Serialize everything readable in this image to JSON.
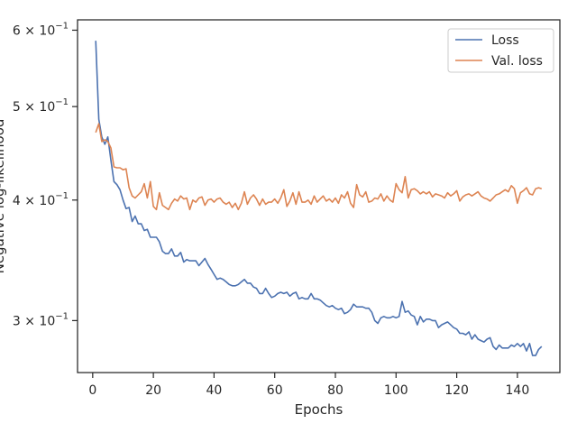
{
  "chart_data": {
    "type": "line",
    "xlabel": "Epochs",
    "ylabel": "Negative log-likelihood",
    "xlim": [
      -5,
      154
    ],
    "ylim": [
      0.265,
      0.615
    ],
    "yscale": "log",
    "grid": false,
    "legend_position": "top-right",
    "x_ticks": [
      0,
      20,
      40,
      60,
      80,
      100,
      120,
      140
    ],
    "x_tick_labels": [
      "0",
      "20",
      "40",
      "60",
      "80",
      "100",
      "120",
      "140"
    ],
    "y_ticks": [
      0.3,
      0.4,
      0.5,
      0.6
    ],
    "y_tick_labels": [
      "3 × 10",
      "4 × 10",
      "5 × 10",
      "6 × 10"
    ],
    "y_tick_exponent": "−1",
    "x": [
      1,
      2,
      3,
      4,
      5,
      6,
      7,
      8,
      9,
      10,
      11,
      12,
      13,
      14,
      15,
      16,
      17,
      18,
      19,
      20,
      21,
      22,
      23,
      24,
      25,
      26,
      27,
      28,
      29,
      30,
      31,
      32,
      33,
      34,
      35,
      36,
      37,
      38,
      39,
      40,
      41,
      42,
      43,
      44,
      45,
      46,
      47,
      48,
      49,
      50,
      51,
      52,
      53,
      54,
      55,
      56,
      57,
      58,
      59,
      60,
      61,
      62,
      63,
      64,
      65,
      66,
      67,
      68,
      69,
      70,
      71,
      72,
      73,
      74,
      75,
      76,
      77,
      78,
      79,
      80,
      81,
      82,
      83,
      84,
      85,
      86,
      87,
      88,
      89,
      90,
      91,
      92,
      93,
      94,
      95,
      96,
      97,
      98,
      99,
      100,
      101,
      102,
      103,
      104,
      105,
      106,
      107,
      108,
      109,
      110,
      111,
      112,
      113,
      114,
      115,
      116,
      117,
      118,
      119,
      120,
      121,
      122,
      123,
      124,
      125,
      126,
      127,
      128,
      129,
      130,
      131,
      132,
      133,
      134,
      135,
      136,
      137,
      138,
      139,
      140,
      141,
      142,
      143,
      144,
      145,
      146,
      147,
      148
    ],
    "series": [
      {
        "name": "Loss",
        "color": "#4c72b0",
        "values": [
          0.585,
          0.485,
          0.465,
          0.457,
          0.465,
          0.44,
          0.418,
          0.415,
          0.41,
          0.4,
          0.392,
          0.393,
          0.38,
          0.385,
          0.378,
          0.378,
          0.372,
          0.373,
          0.366,
          0.366,
          0.366,
          0.362,
          0.354,
          0.352,
          0.352,
          0.356,
          0.35,
          0.35,
          0.353,
          0.345,
          0.347,
          0.346,
          0.346,
          0.346,
          0.342,
          0.345,
          0.348,
          0.343,
          0.339,
          0.335,
          0.331,
          0.332,
          0.331,
          0.329,
          0.327,
          0.326,
          0.326,
          0.327,
          0.329,
          0.331,
          0.328,
          0.328,
          0.325,
          0.324,
          0.32,
          0.32,
          0.324,
          0.32,
          0.317,
          0.318,
          0.32,
          0.321,
          0.32,
          0.321,
          0.318,
          0.32,
          0.321,
          0.316,
          0.317,
          0.316,
          0.316,
          0.32,
          0.316,
          0.316,
          0.315,
          0.313,
          0.311,
          0.31,
          0.311,
          0.309,
          0.308,
          0.309,
          0.305,
          0.306,
          0.308,
          0.312,
          0.31,
          0.31,
          0.31,
          0.309,
          0.309,
          0.306,
          0.3,
          0.298,
          0.302,
          0.303,
          0.302,
          0.302,
          0.303,
          0.302,
          0.303,
          0.314,
          0.306,
          0.307,
          0.304,
          0.303,
          0.297,
          0.303,
          0.299,
          0.301,
          0.301,
          0.3,
          0.3,
          0.295,
          0.297,
          0.298,
          0.299,
          0.297,
          0.295,
          0.294,
          0.291,
          0.291,
          0.29,
          0.292,
          0.287,
          0.29,
          0.287,
          0.286,
          0.285,
          0.287,
          0.288,
          0.282,
          0.28,
          0.283,
          0.281,
          0.281,
          0.281,
          0.283,
          0.282,
          0.284,
          0.282,
          0.284,
          0.279,
          0.284,
          0.276,
          0.276,
          0.28,
          0.282
        ]
      },
      {
        "name": "Val. loss",
        "color": "#dd8452",
        "values": [
          0.47,
          0.48,
          0.46,
          0.462,
          0.46,
          0.453,
          0.433,
          0.432,
          0.432,
          0.43,
          0.431,
          0.412,
          0.404,
          0.402,
          0.405,
          0.408,
          0.416,
          0.402,
          0.418,
          0.394,
          0.391,
          0.407,
          0.395,
          0.393,
          0.391,
          0.397,
          0.401,
          0.399,
          0.404,
          0.401,
          0.402,
          0.391,
          0.4,
          0.398,
          0.402,
          0.403,
          0.395,
          0.4,
          0.401,
          0.398,
          0.401,
          0.402,
          0.398,
          0.396,
          0.398,
          0.393,
          0.397,
          0.391,
          0.397,
          0.408,
          0.396,
          0.402,
          0.405,
          0.401,
          0.395,
          0.401,
          0.396,
          0.398,
          0.398,
          0.401,
          0.397,
          0.402,
          0.41,
          0.394,
          0.399,
          0.407,
          0.396,
          0.408,
          0.398,
          0.398,
          0.4,
          0.396,
          0.404,
          0.398,
          0.401,
          0.404,
          0.399,
          0.401,
          0.398,
          0.402,
          0.397,
          0.405,
          0.402,
          0.408,
          0.397,
          0.393,
          0.415,
          0.405,
          0.403,
          0.408,
          0.398,
          0.399,
          0.402,
          0.401,
          0.406,
          0.399,
          0.404,
          0.4,
          0.398,
          0.416,
          0.41,
          0.407,
          0.423,
          0.402,
          0.41,
          0.411,
          0.409,
          0.406,
          0.408,
          0.406,
          0.408,
          0.403,
          0.406,
          0.405,
          0.404,
          0.402,
          0.407,
          0.404,
          0.406,
          0.409,
          0.399,
          0.403,
          0.405,
          0.406,
          0.404,
          0.406,
          0.408,
          0.404,
          0.402,
          0.401,
          0.399,
          0.402,
          0.405,
          0.406,
          0.408,
          0.41,
          0.408,
          0.414,
          0.411,
          0.397,
          0.407,
          0.409,
          0.412,
          0.406,
          0.405,
          0.411,
          0.412,
          0.411
        ]
      }
    ]
  }
}
